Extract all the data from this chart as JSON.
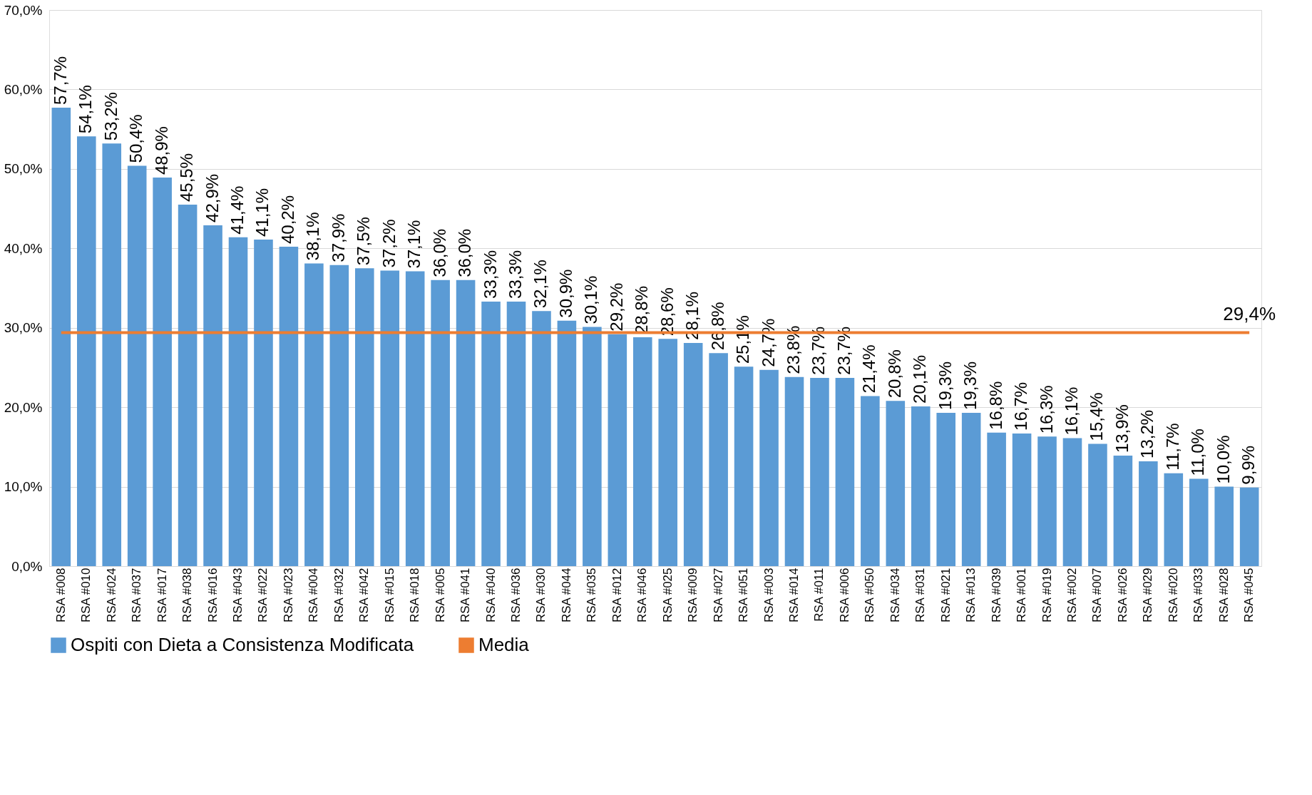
{
  "chart_data": {
    "type": "bar",
    "categories": [
      "RSA #008",
      "RSA #010",
      "RSA #024",
      "RSA #037",
      "RSA #017",
      "RSA #038",
      "RSA #016",
      "RSA #043",
      "RSA #022",
      "RSA #023",
      "RSA #004",
      "RSA #032",
      "RSA #042",
      "RSA #015",
      "RSA #018",
      "RSA #005",
      "RSA #041",
      "RSA #040",
      "RSA #036",
      "RSA #030",
      "RSA #044",
      "RSA #035",
      "RSA #012",
      "RSA #046",
      "RSA #025",
      "RSA #009",
      "RSA #027",
      "RSA #051",
      "RSA #003",
      "RSA #014",
      "RSA #011",
      "RSA #006",
      "RSA #050",
      "RSA #034",
      "RSA #031",
      "RSA #021",
      "RSA #013",
      "RSA #039",
      "RSA #001",
      "RSA #019",
      "RSA #002",
      "RSA #007",
      "RSA #026",
      "RSA #029",
      "RSA #020",
      "RSA #033",
      "RSA #028",
      "RSA #045"
    ],
    "series": [
      {
        "name": "Ospiti con Dieta a Consistenza Modificata",
        "color": "#5b9bd5",
        "values": [
          57.7,
          54.1,
          53.2,
          50.4,
          48.9,
          45.5,
          42.9,
          41.4,
          41.1,
          40.2,
          38.1,
          37.9,
          37.5,
          37.2,
          37.1,
          36.0,
          36.0,
          33.3,
          33.3,
          32.1,
          30.9,
          30.1,
          29.2,
          28.8,
          28.6,
          28.1,
          26.8,
          25.1,
          24.7,
          23.8,
          23.7,
          23.7,
          21.4,
          20.8,
          20.1,
          19.3,
          19.3,
          16.8,
          16.7,
          16.3,
          16.1,
          15.4,
          13.9,
          13.2,
          11.7,
          11.0,
          10.0,
          9.9
        ],
        "value_labels": [
          "57,7%",
          "54,1%",
          "53,2%",
          "50,4%",
          "48,9%",
          "45,5%",
          "42,9%",
          "41,4%",
          "41,1%",
          "40,2%",
          "38,1%",
          "37,9%",
          "37,5%",
          "37,2%",
          "37,1%",
          "36,0%",
          "36,0%",
          "33,3%",
          "33,3%",
          "32,1%",
          "30,9%",
          "30,1%",
          "29,2%",
          "28,8%",
          "28,6%",
          "28,1%",
          "26,8%",
          "25,1%",
          "24,7%",
          "23,8%",
          "23,7%",
          "23,7%",
          "21,4%",
          "20,8%",
          "20,1%",
          "19,3%",
          "19,3%",
          "16,8%",
          "16,7%",
          "16,3%",
          "16,1%",
          "15,4%",
          "13,9%",
          "13,2%",
          "11,7%",
          "11,0%",
          "10,0%",
          "9,9%"
        ]
      },
      {
        "name": "Media",
        "type": "line",
        "color": "#ed7d31",
        "values": [
          29.4,
          29.4,
          29.4,
          29.4,
          29.4,
          29.4,
          29.4,
          29.4,
          29.4,
          29.4,
          29.4,
          29.4,
          29.4,
          29.4,
          29.4,
          29.4,
          29.4,
          29.4,
          29.4,
          29.4,
          29.4,
          29.4,
          29.4,
          29.4,
          29.4,
          29.4,
          29.4,
          29.4,
          29.4,
          29.4,
          29.4,
          29.4,
          29.4,
          29.4,
          29.4,
          29.4,
          29.4,
          29.4,
          29.4,
          29.4,
          29.4,
          29.4,
          29.4,
          29.4,
          29.4,
          29.4,
          29.4,
          29.4
        ],
        "value_labels": [
          null,
          null,
          null,
          null,
          null,
          null,
          null,
          null,
          null,
          null,
          null,
          null,
          null,
          null,
          null,
          null,
          null,
          null,
          null,
          null,
          null,
          null,
          null,
          null,
          null,
          null,
          null,
          null,
          null,
          null,
          null,
          null,
          null,
          null,
          null,
          null,
          null,
          null,
          null,
          null,
          null,
          null,
          null,
          null,
          null,
          null,
          null,
          "29,4%"
        ]
      }
    ],
    "ylim": [
      0,
      70
    ],
    "yticks": [
      {
        "value": 0,
        "label": "0,0%"
      },
      {
        "value": 10,
        "label": "10,0%"
      },
      {
        "value": 20,
        "label": "20,0%"
      },
      {
        "value": 30,
        "label": "30,0%"
      },
      {
        "value": 40,
        "label": "40,0%"
      },
      {
        "value": 50,
        "label": "50,0%"
      },
      {
        "value": 60,
        "label": "60,0%"
      },
      {
        "value": 70,
        "label": "70,0%"
      }
    ],
    "grid": "y",
    "legend": "bottom"
  }
}
